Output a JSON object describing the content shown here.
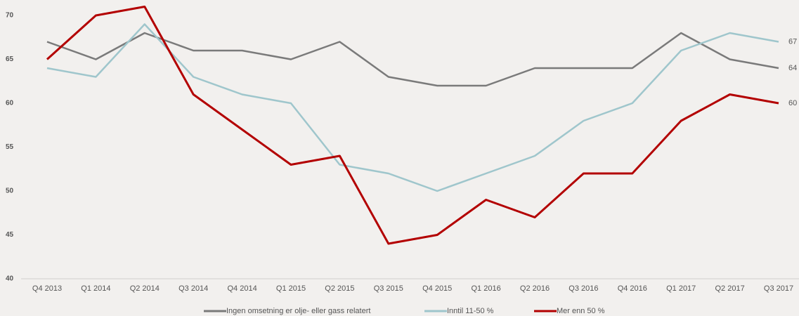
{
  "chart_data": {
    "type": "line",
    "categories": [
      "Q4 2013",
      "Q1 2014",
      "Q2 2014",
      "Q3 2014",
      "Q4 2014",
      "Q1 2015",
      "Q2 2015",
      "Q3 2015",
      "Q4 2015",
      "Q1 2016",
      "Q2 2016",
      "Q3 2016",
      "Q4 2016",
      "Q1 2017",
      "Q2 2017",
      "Q3 2017"
    ],
    "series": [
      {
        "name": "Ingen omsetning er olje- eller gass relatert",
        "color": "#7a7a7a",
        "values": [
          67,
          65,
          68,
          66,
          66,
          65,
          67,
          63,
          62,
          62,
          64,
          64,
          64,
          68,
          65,
          64
        ]
      },
      {
        "name": "Inntil 11-50 %",
        "color": "#9fc6cc",
        "values": [
          64,
          63,
          69,
          63,
          61,
          60,
          53,
          52,
          50,
          52,
          54,
          58,
          60,
          66,
          68,
          67
        ]
      },
      {
        "name": "Mer enn 50 %",
        "color": "#b30000",
        "values": [
          65,
          70,
          71,
          61,
          57,
          53,
          54,
          44,
          45,
          49,
          47,
          52,
          52,
          58,
          61,
          60
        ]
      }
    ],
    "ylim": [
      40,
      70
    ],
    "yticks": [
      40,
      45,
      50,
      55,
      60,
      65,
      70
    ]
  }
}
